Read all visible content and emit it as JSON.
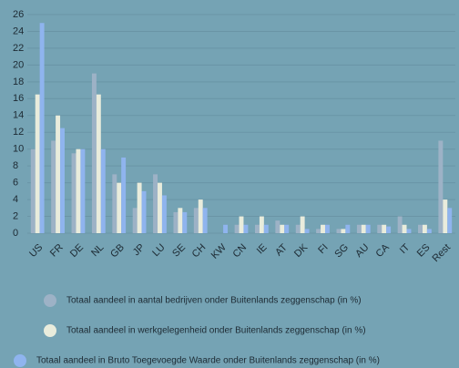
{
  "chart_data": {
    "type": "bar",
    "categories": [
      "US",
      "FR",
      "DE",
      "NL",
      "GB",
      "JP",
      "LU",
      "SE",
      "CH",
      "KW",
      "CN",
      "IE",
      "AT",
      "DK",
      "FI",
      "SG",
      "AU",
      "CA",
      "IT",
      "ES",
      "Rest"
    ],
    "series": [
      {
        "name": "Totaal aandeel in aantal bedrijven onder Buitenlands zeggenschap (in %)",
        "color": "#9db2c6",
        "values": [
          10,
          11,
          9.5,
          19,
          7,
          3,
          7,
          2.5,
          3,
          0,
          1,
          1,
          1.5,
          1,
          0.5,
          0.5,
          1,
          1,
          2,
          1,
          11
        ]
      },
      {
        "name": "Totaal aandeel in werkgelegenheid onder Buitenlands zeggenschap (in %)",
        "color": "#e9ecdc",
        "values": [
          16.5,
          14,
          10,
          16.5,
          6,
          6,
          6,
          3,
          4,
          0,
          2,
          2,
          1,
          2,
          1,
          0.5,
          1,
          1,
          1,
          1,
          4
        ]
      },
      {
        "name": "Totaal aandeel in Bruto Toegevoegde Waarde onder Buitenlands zeggenschap (in %)",
        "color": "#8fb4ee",
        "values": [
          25,
          12.5,
          10,
          10,
          9,
          5,
          4.5,
          2.5,
          3,
          1,
          1,
          1,
          1,
          0.5,
          1,
          1,
          1,
          0.8,
          0.5,
          0.5,
          3
        ]
      }
    ],
    "ylim": [
      0,
      26
    ],
    "yticks": [
      0,
      2,
      4,
      6,
      8,
      10,
      12,
      14,
      16,
      18,
      20,
      22,
      24,
      26
    ],
    "grid": true
  }
}
